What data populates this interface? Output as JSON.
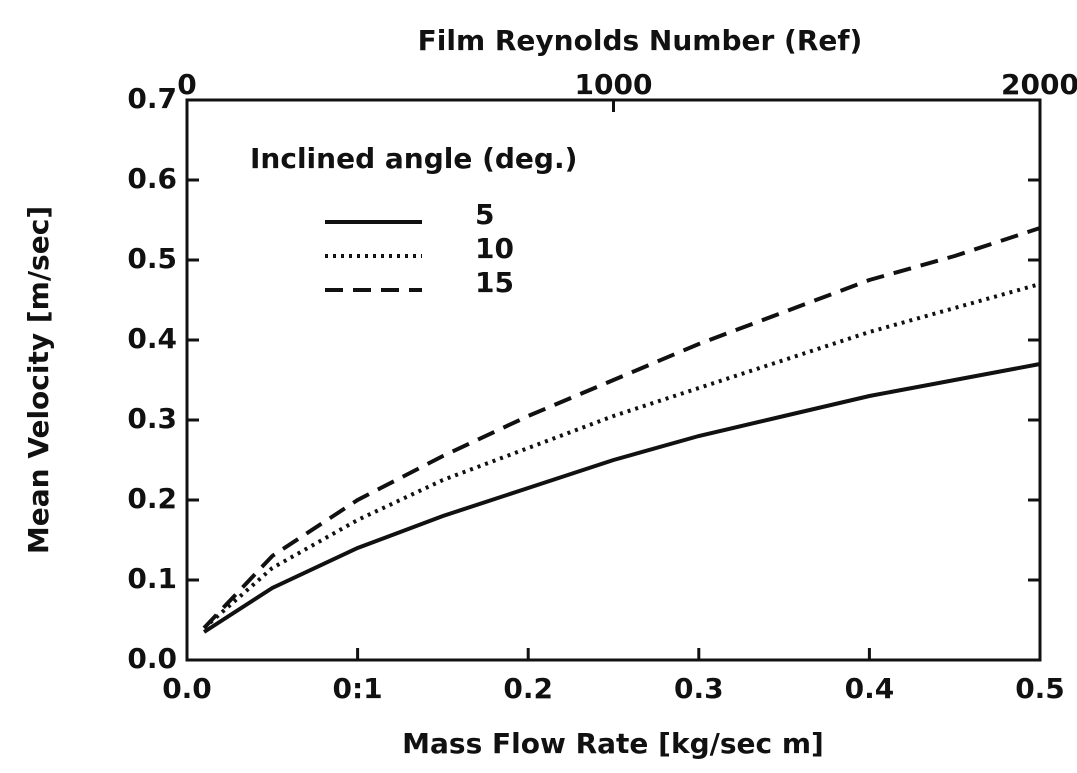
{
  "chart_data": {
    "type": "line",
    "title": "Film Reynolds Number (Ref)",
    "xlabel": "Mass Flow Rate [kg/sec m]",
    "ylabel": "Mean Velocity [m/sec]",
    "legend_title": "Inclined angle (deg.)",
    "x": [
      0.01,
      0.05,
      0.1,
      0.15,
      0.2,
      0.25,
      0.3,
      0.35,
      0.4,
      0.45,
      0.5
    ],
    "series": [
      {
        "name": "5",
        "color": "#111111",
        "dash": "solid",
        "values": [
          0.035,
          0.09,
          0.14,
          0.18,
          0.215,
          0.25,
          0.28,
          0.305,
          0.33,
          0.35,
          0.37
        ]
      },
      {
        "name": "10",
        "color": "#111111",
        "dash": "dotted",
        "values": [
          0.04,
          0.115,
          0.175,
          0.225,
          0.265,
          0.305,
          0.34,
          0.375,
          0.41,
          0.44,
          0.47
        ]
      },
      {
        "name": "15",
        "color": "#111111",
        "dash": "dashed",
        "values": [
          0.04,
          0.13,
          0.2,
          0.255,
          0.305,
          0.35,
          0.395,
          0.435,
          0.475,
          0.505,
          0.54
        ]
      }
    ],
    "xlim": [
      0,
      0.5
    ],
    "xticks": [
      {
        "value": 0,
        "label": "0.0"
      },
      {
        "value": 0.1,
        "label": "0:1"
      },
      0.2,
      0.3,
      0.4,
      0.5
    ],
    "ylim": [
      0,
      0.7
    ],
    "yticks": [
      {
        "value": 0,
        "label": "0.0"
      },
      0.1,
      0.2,
      0.3,
      0.4,
      0.5,
      0.6,
      0.7
    ],
    "x2lim": [
      0,
      2000
    ],
    "x2ticks": [
      0,
      1000,
      2000
    ],
    "legend": "upper left",
    "grid": false
  }
}
